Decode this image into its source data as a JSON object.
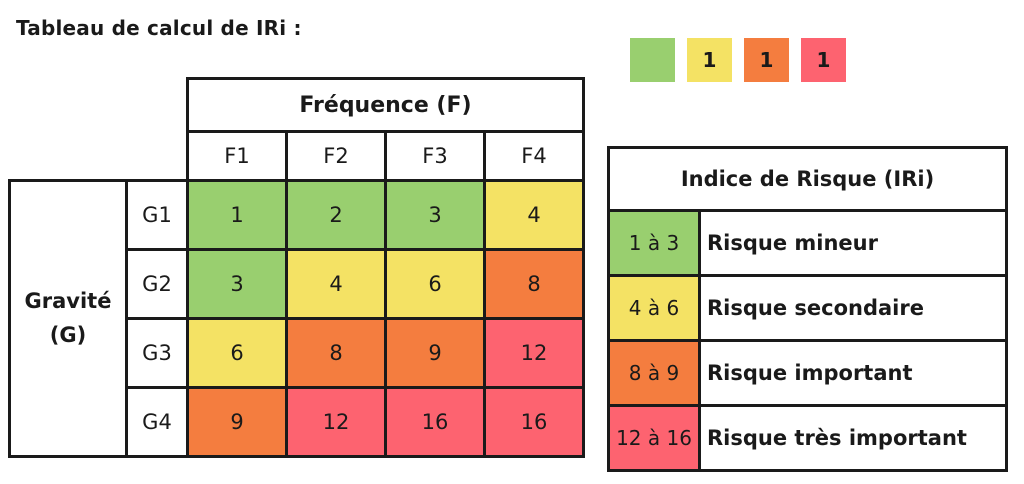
{
  "title": "Tableau de calcul de IRi :",
  "swatches": [
    {
      "text": "",
      "color": "#99cf6f"
    },
    {
      "text": "1",
      "color": "#f4e264"
    },
    {
      "text": "1",
      "color": "#f47d3f"
    },
    {
      "text": "1",
      "color": "#fd6370"
    }
  ],
  "matrix": {
    "frequency_title": "Fréquence (F)",
    "frequency_headers": [
      "F1",
      "F2",
      "F3",
      "F4"
    ],
    "gravity_title": "Gravité (G)",
    "rows": [
      {
        "label": "G1",
        "values": [
          "1",
          "2",
          "3",
          "4"
        ]
      },
      {
        "label": "G2",
        "values": [
          "3",
          "4",
          "6",
          "8"
        ]
      },
      {
        "label": "G3",
        "values": [
          "6",
          "8",
          "9",
          "12"
        ]
      },
      {
        "label": "G4",
        "values": [
          "9",
          "12",
          "16",
          "16"
        ]
      }
    ]
  },
  "legend": {
    "title": "Indice de Risque (IRi)",
    "items": [
      {
        "range": "1 à 3",
        "label": "Risque mineur",
        "color": "#99cf6f"
      },
      {
        "range": "4 à 6",
        "label": "Risque secondaire",
        "color": "#f4e264"
      },
      {
        "range": "8 à 9",
        "label": "Risque important",
        "color": "#f47d3f"
      },
      {
        "range": "12 à 16",
        "label": "Risque très important",
        "color": "#fd6370"
      }
    ]
  },
  "level_colors": {
    "minor": "#99cf6f",
    "secondary": "#f4e264",
    "important": "#f47d3f",
    "very_important": "#fd6370"
  }
}
